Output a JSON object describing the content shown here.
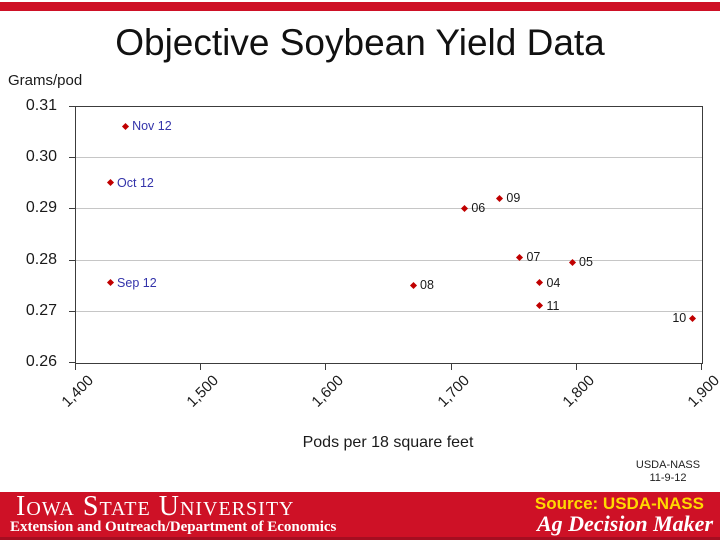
{
  "slide": {
    "title": "Objective Soybean Yield Data",
    "accent_color": "#CE1126",
    "footer": {
      "bar_color": "#CE1126",
      "university": "Iowa State University",
      "department": "Extension and Outreach/Department of Economics",
      "source_label": "Source: USDA-NASS",
      "source_color": "#FFD900",
      "brand": "Ag Decision Maker",
      "note_line1": "USDA-NASS",
      "note_line2": "11-9-12"
    }
  },
  "chart_data": {
    "type": "scatter",
    "title": "",
    "ylabel": "Grams/pod",
    "xlabel": "Pods per 18 square feet",
    "xlim": [
      1400,
      1900
    ],
    "ylim": [
      0.26,
      0.31
    ],
    "x_ticks": [
      "1,400",
      "1,500",
      "1,600",
      "1,700",
      "1,800",
      "1,900"
    ],
    "y_ticks": [
      "0.31",
      "0.30",
      "0.29",
      "0.28",
      "0.27",
      "0.26"
    ],
    "grid": "horizontal-light-gray",
    "legend": "none",
    "marker": "diamond",
    "marker_color": "#C00000",
    "month_label_color": "#3333AA",
    "year_label_color": "#1a1a1a",
    "points": [
      {
        "label": "Nov 12",
        "x": 1440,
        "y": 0.306,
        "label_color": "#3333AA",
        "side": "right"
      },
      {
        "label": "Oct 12",
        "x": 1428,
        "y": 0.295,
        "label_color": "#3333AA",
        "side": "right"
      },
      {
        "label": "Sep 12",
        "x": 1428,
        "y": 0.2755,
        "label_color": "#3333AA",
        "side": "right"
      },
      {
        "label": "06",
        "x": 1711,
        "y": 0.29,
        "label_color": "#1a1a1a",
        "side": "right"
      },
      {
        "label": "09",
        "x": 1739,
        "y": 0.292,
        "label_color": "#1a1a1a",
        "side": "right"
      },
      {
        "label": "07",
        "x": 1755,
        "y": 0.2805,
        "label_color": "#1a1a1a",
        "side": "right"
      },
      {
        "label": "05",
        "x": 1797,
        "y": 0.2795,
        "label_color": "#1a1a1a",
        "side": "right"
      },
      {
        "label": "08",
        "x": 1670,
        "y": 0.275,
        "label_color": "#1a1a1a",
        "side": "right"
      },
      {
        "label": "04",
        "x": 1771,
        "y": 0.2755,
        "label_color": "#1a1a1a",
        "side": "right"
      },
      {
        "label": "11",
        "x": 1771,
        "y": 0.271,
        "label_color": "#1a1a1a",
        "side": "right"
      },
      {
        "label": "10",
        "x": 1893,
        "y": 0.2685,
        "label_color": "#1a1a1a",
        "side": "left"
      }
    ]
  }
}
